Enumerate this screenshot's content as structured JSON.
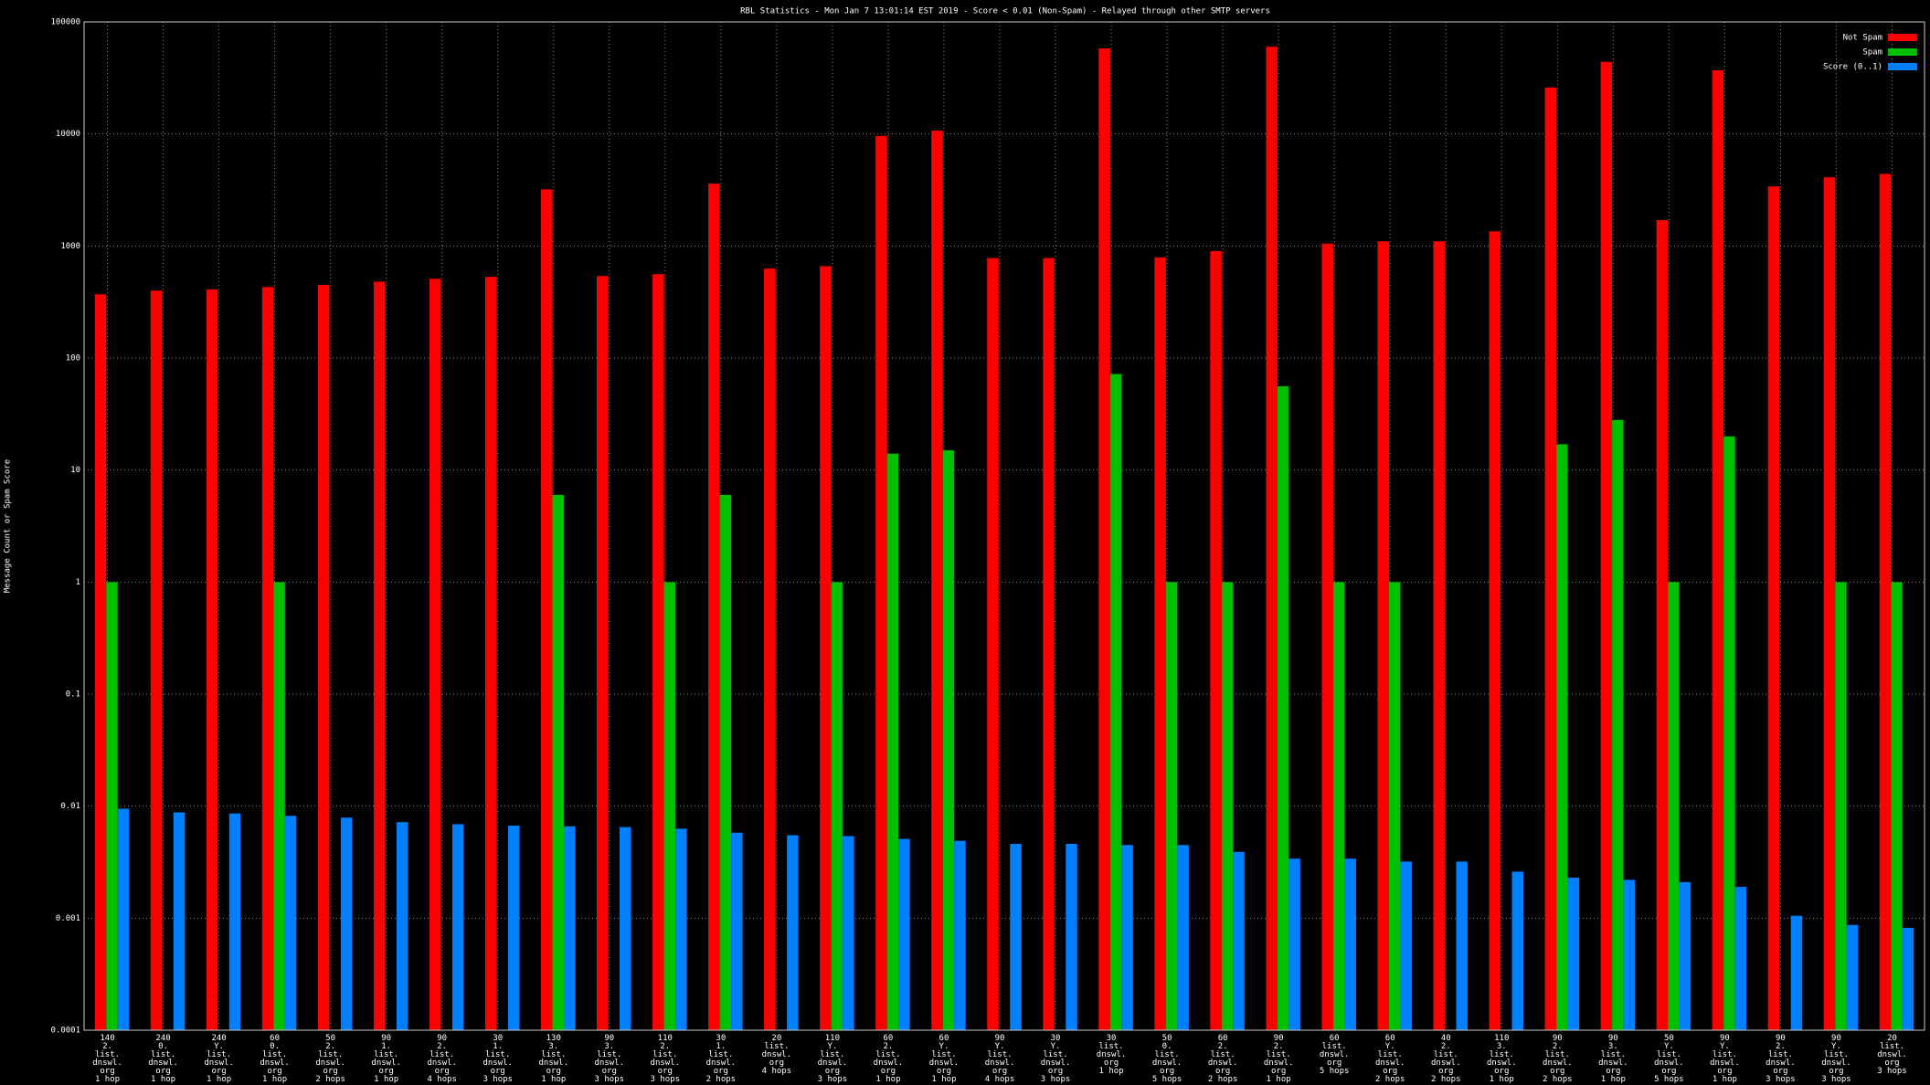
{
  "chart_data": {
    "type": "bar",
    "title": "RBL Statistics - Mon Jan  7 13:01:14 EST 2019 - Score < 0.01 (Non-Spam) - Relayed through other SMTP servers",
    "y_label": "Message Count or Spam Score",
    "log_scale": true,
    "grid": true,
    "legend": "top-right",
    "categories": [
      [
        "140",
        "2.",
        "list.",
        "dnswl.",
        "org",
        "1 hop"
      ],
      [
        "240",
        "0.",
        "list.",
        "dnswl.",
        "org",
        "1 hop"
      ],
      [
        "240",
        "Y.",
        "list.",
        "dnswl.",
        "org",
        "1 hop"
      ],
      [
        "60",
        "0.",
        "list.",
        "dnswl.",
        "org",
        "1 hop"
      ],
      [
        "50",
        "2.",
        "list.",
        "dnswl.",
        "org",
        "2 hops"
      ],
      [
        "90",
        "1.",
        "list.",
        "dnswl.",
        "org",
        "1 hop"
      ],
      [
        "90",
        "2.",
        "list.",
        "dnswl.",
        "org",
        "4 hops"
      ],
      [
        "30",
        "1.",
        "list.",
        "dnswl.",
        "org",
        "3 hops"
      ],
      [
        "130",
        "3.",
        "list.",
        "dnswl.",
        "org",
        "1 hop"
      ],
      [
        "90",
        "3.",
        "list.",
        "dnswl.",
        "org",
        "3 hops"
      ],
      [
        "110",
        "2.",
        "list.",
        "dnswl.",
        "org",
        "3 hops"
      ],
      [
        "30",
        "1.",
        "list.",
        "dnswl.",
        "org",
        "2 hops"
      ],
      [
        "20",
        "list.",
        "dnswl.",
        "org",
        "4 hops"
      ],
      [
        "110",
        "Y.",
        "list.",
        "dnswl.",
        "org",
        "3 hops"
      ],
      [
        "60",
        "2.",
        "list.",
        "dnswl.",
        "org",
        "1 hop"
      ],
      [
        "60",
        "Y.",
        "list.",
        "dnswl.",
        "org",
        "1 hop"
      ],
      [
        "90",
        "Y.",
        "list.",
        "dnswl.",
        "org",
        "4 hops"
      ],
      [
        "30",
        "Y.",
        "list.",
        "dnswl.",
        "org",
        "3 hops"
      ],
      [
        "30",
        "list.",
        "dnswl.",
        "org",
        "1 hop"
      ],
      [
        "50",
        "0.",
        "list.",
        "dnswl.",
        "org",
        "5 hops"
      ],
      [
        "60",
        "2.",
        "list.",
        "dnswl.",
        "org",
        "2 hops"
      ],
      [
        "90",
        "2.",
        "list.",
        "dnswl.",
        "org",
        "1 hop"
      ],
      [
        "60",
        "list.",
        "dnswl.",
        "org",
        "5 hops"
      ],
      [
        "60",
        "Y.",
        "list.",
        "dnswl.",
        "org",
        "2 hops"
      ],
      [
        "40",
        "2.",
        "list.",
        "dnswl.",
        "org",
        "2 hops"
      ],
      [
        "110",
        "3.",
        "list.",
        "dnswl.",
        "org",
        "1 hop"
      ],
      [
        "90",
        "2.",
        "list.",
        "dnswl.",
        "org",
        "2 hops"
      ],
      [
        "90",
        "3.",
        "list.",
        "dnswl.",
        "org",
        "1 hop"
      ],
      [
        "50",
        "Y.",
        "list.",
        "dnswl.",
        "org",
        "5 hops"
      ],
      [
        "90",
        "Y.",
        "list.",
        "dnswl.",
        "org",
        "1 hop"
      ],
      [
        "90",
        "2.",
        "list.",
        "dnswl.",
        "org",
        "3 hops"
      ],
      [
        "90",
        "Y.",
        "list.",
        "dnswl.",
        "org",
        "3 hops"
      ],
      [
        "20",
        "list.",
        "dnswl.",
        "org",
        "3 hops"
      ]
    ],
    "series": [
      {
        "name": "Not Spam",
        "color": "#ff0000",
        "values": [
          370,
          400,
          410,
          430,
          450,
          480,
          510,
          530,
          3200,
          540,
          560,
          3600,
          630,
          660,
          9600,
          10700,
          780,
          780,
          58000,
          790,
          900,
          60000,
          1050,
          1100,
          1100,
          1350,
          26000,
          44000,
          1700,
          37000,
          3400,
          4100,
          4400
        ]
      },
      {
        "name": "Spam",
        "color": "#00c000",
        "values": [
          1,
          null,
          null,
          1,
          null,
          null,
          null,
          null,
          6,
          null,
          1,
          6,
          null,
          1,
          14,
          15,
          null,
          null,
          72,
          1,
          1,
          56,
          1,
          1,
          null,
          null,
          17,
          28,
          1,
          20,
          null,
          1,
          1
        ]
      },
      {
        "name": "Score (0..1)",
        "color": "#0080ff",
        "values": [
          0.0095,
          0.0088,
          0.0086,
          0.0082,
          0.0079,
          0.0072,
          0.0069,
          0.0067,
          0.0066,
          0.0065,
          0.0063,
          0.0058,
          0.0055,
          0.0054,
          0.0051,
          0.0049,
          0.0046,
          0.0046,
          0.0045,
          0.0045,
          0.0039,
          0.0034,
          0.0034,
          0.0032,
          0.0032,
          0.0026,
          0.0023,
          0.0022,
          0.0021,
          0.0019,
          0.00105,
          0.00087,
          0.00082
        ]
      }
    ],
    "ylim": [
      0.0001,
      100000
    ],
    "yticks": [
      0.0001,
      0.001,
      0.01,
      0.1,
      1,
      10,
      100,
      1000,
      10000,
      100000
    ]
  }
}
